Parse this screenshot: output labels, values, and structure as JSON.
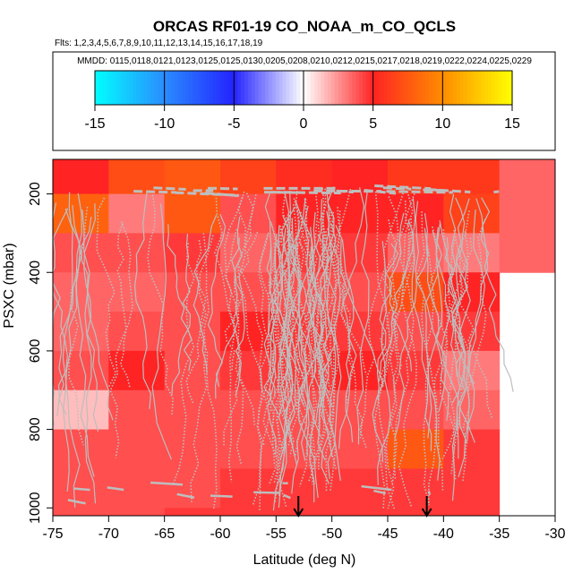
{
  "chart_data": {
    "type": "heatmap",
    "title": "ORCAS RF01-19 CO_NOAA_m_CO_QCLS",
    "flights_text": "Flts: 1,2,3,4,5,6,7,8,9,10,11,12,13,14,15,16,17,18,19",
    "mmdd_text": "MMDD: 0115,0118,0121,0123,0125,0125,0130,0205,0208,0210,0212,0215,0217,0218,0219,0222,0224,0225,0229",
    "xlabel": "Latitude (deg N)",
    "ylabel": "PSXC (mbar)",
    "xlim": [
      -75,
      -30
    ],
    "ylim": [
      1025,
      100
    ],
    "x_ticks": [
      -75,
      -70,
      -65,
      -60,
      -55,
      -50,
      -45,
      -40,
      -35,
      -30
    ],
    "y_ticks": [
      200,
      400,
      600,
      800,
      1000
    ],
    "colorbar": {
      "range": [
        -15,
        15
      ],
      "ticks": [
        -15,
        -10,
        -5,
        0,
        5,
        10,
        15
      ],
      "stops": [
        "#00ffff",
        "#2a8cff",
        "#2323ff",
        "#ffffff",
        "#ff2323",
        "#ff8c00",
        "#ffff00"
      ]
    },
    "lat_bin_edges": [
      -75,
      -70,
      -65,
      -60,
      -55,
      -50,
      -45,
      -40,
      -35,
      -30
    ],
    "pressure_bin_edges": [
      100,
      200,
      300,
      400,
      500,
      600,
      700,
      800,
      900,
      1000,
      1025
    ],
    "cells": [
      [
        5.0,
        7.0,
        7.5,
        6.5,
        5.5,
        5.0,
        6.0,
        6.0,
        3.5
      ],
      [
        8.0,
        3.0,
        7.5,
        4.0,
        5.0,
        5.0,
        5.0,
        6.5,
        3.5
      ],
      [
        4.0,
        4.0,
        4.5,
        3.5,
        4.5,
        4.5,
        3.5,
        3.0,
        3.5
      ],
      [
        3.5,
        3.5,
        4.0,
        4.0,
        4.0,
        4.0,
        7.0,
        5.0,
        null
      ],
      [
        3.5,
        4.0,
        4.0,
        5.0,
        4.5,
        4.5,
        4.0,
        4.5,
        null
      ],
      [
        4.0,
        5.0,
        4.0,
        4.5,
        4.5,
        5.0,
        4.5,
        3.0,
        null
      ],
      [
        1.5,
        4.0,
        4.0,
        4.0,
        4.0,
        4.0,
        4.0,
        3.5,
        null
      ],
      [
        4.0,
        4.0,
        4.0,
        4.0,
        4.0,
        4.0,
        7.5,
        4.5,
        null
      ],
      [
        4.0,
        4.0,
        4.0,
        4.5,
        4.5,
        4.5,
        4.5,
        4.5,
        null
      ],
      [
        4.0,
        4.0,
        4.5,
        4.5,
        4.5,
        4.5,
        4.5,
        4.5,
        null
      ]
    ],
    "track_color": "#bebebe",
    "arrows_at_latitude": [
      -53,
      -41.5
    ]
  }
}
